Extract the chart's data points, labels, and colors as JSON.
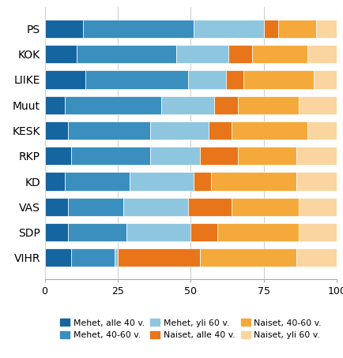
{
  "parties": [
    "PS",
    "KOK",
    "LIIKE",
    "Muut",
    "KESK",
    "RKP",
    "KD",
    "VAS",
    "SDP",
    "VIHR"
  ],
  "segments": {
    "Mehet, alle 40 v.": {
      "color": "#1565a0",
      "values": [
        13,
        11,
        14,
        7,
        8,
        9,
        7,
        8,
        8,
        9
      ]
    },
    "Mehet, 40-60 v.": {
      "color": "#3a8fbf",
      "values": [
        38,
        34,
        35,
        33,
        28,
        27,
        22,
        19,
        20,
        15
      ]
    },
    "Mehet, yli 60 v.": {
      "color": "#8ec6e0",
      "values": [
        24,
        18,
        13,
        18,
        20,
        17,
        22,
        22,
        22,
        1
      ]
    },
    "Naiset, alle 40 v.": {
      "color": "#e8751a",
      "values": [
        5,
        8,
        6,
        8,
        8,
        13,
        6,
        15,
        9,
        28
      ]
    },
    "Naiset, 40-60 v.": {
      "color": "#f5a93a",
      "values": [
        13,
        19,
        24,
        21,
        26,
        20,
        29,
        23,
        28,
        33
      ]
    },
    "Naiset, yli 60 v.": {
      "color": "#fad59f",
      "values": [
        7,
        10,
        8,
        13,
        10,
        14,
        14,
        13,
        13,
        14
      ]
    }
  },
  "xlim": [
    0,
    100
  ],
  "xticks": [
    0,
    25,
    50,
    75,
    100
  ],
  "bar_height": 0.72,
  "figsize": [
    4.35,
    4.54
  ],
  "dpi": 100,
  "background_color": "#ffffff",
  "grid_color": "#d0d0d0",
  "legend_items_row1": [
    "Mehet, alle 40 v.",
    "Mehet, 40-60 v.",
    "Mehet, yli 60 v."
  ],
  "legend_items_row2": [
    "Naiset, alle 40 v.",
    "Naiset, 40-60 v.",
    "Naiset, yli 60 v."
  ]
}
